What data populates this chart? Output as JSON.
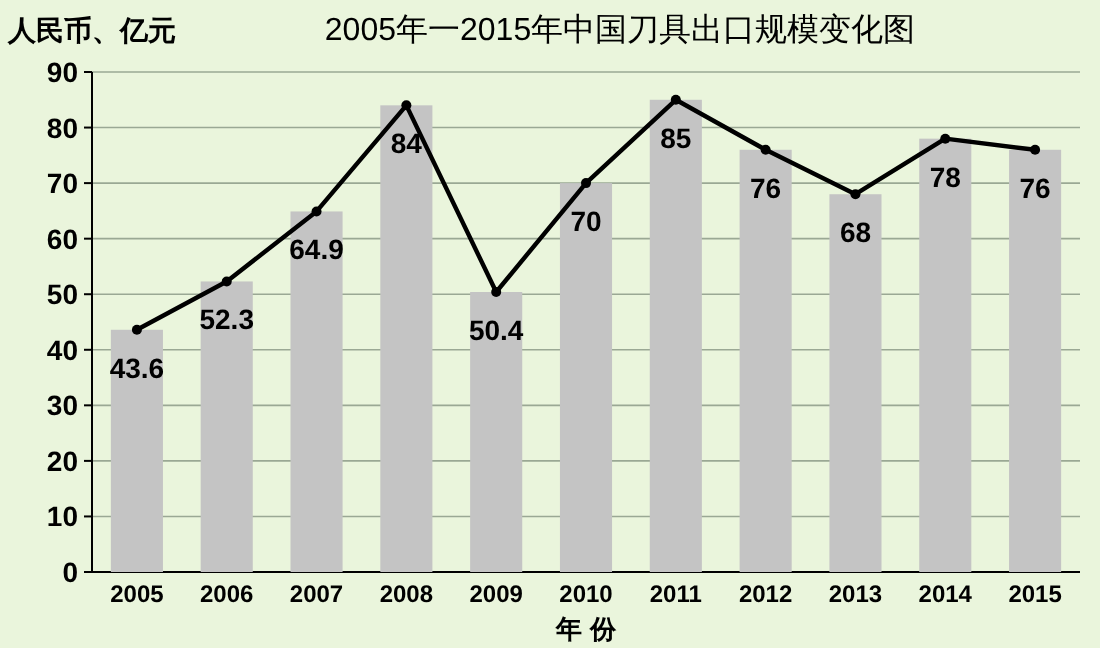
{
  "chart_data": {
    "type": "bar",
    "title": "2005年一2015年中国刀具出口规模变化图",
    "ylabel": "人民币、亿元",
    "xlabel": "年 份",
    "categories": [
      "2005",
      "2006",
      "2007",
      "2008",
      "2009",
      "2010",
      "2011",
      "2012",
      "2013",
      "2014",
      "2015"
    ],
    "series": [
      {
        "color": "#c4c4c4",
        "values": [
          43.6,
          52.3,
          64.9,
          84,
          50.4,
          70,
          85,
          76,
          68,
          78,
          76
        ],
        "value_labels": [
          "43.6",
          "52.3",
          "64.9",
          "84",
          "50.4",
          "70",
          "85",
          "76",
          "68",
          "78",
          "76"
        ]
      },
      {
        "type": "line",
        "color": "#000000",
        "values": [
          43.6,
          52.3,
          64.9,
          84,
          50.4,
          70,
          85,
          76,
          68,
          78,
          76
        ]
      }
    ],
    "ylim": [
      0,
      90
    ],
    "yticks": [
      0,
      10,
      20,
      30,
      40,
      50,
      60,
      70,
      80,
      90
    ],
    "grid": "y",
    "marker": "circle"
  }
}
